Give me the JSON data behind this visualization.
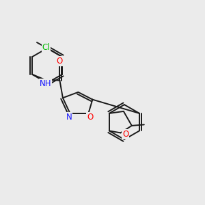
{
  "bg_color": "#ebebeb",
  "bond_color": "#1a1a1a",
  "bond_width": 1.4,
  "atom_colors": {
    "N": "#1414ff",
    "O": "#ff0000",
    "Cl": "#00bb00",
    "C": "#1a1a1a"
  }
}
